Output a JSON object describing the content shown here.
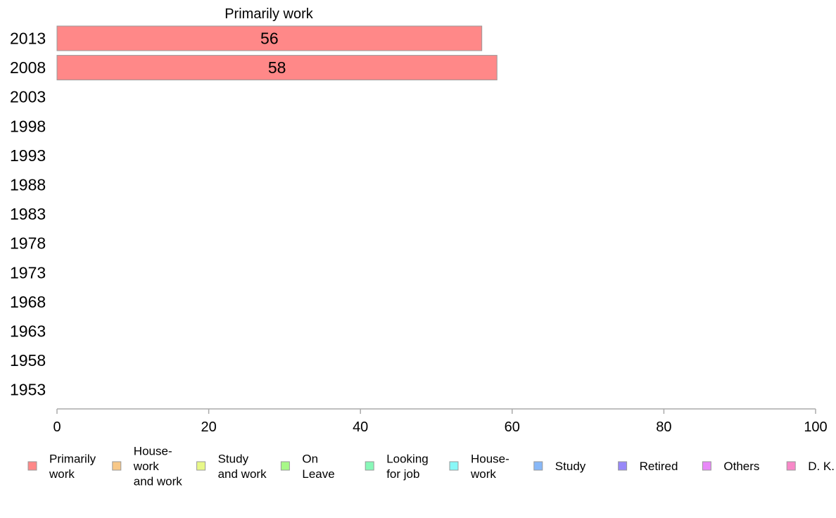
{
  "chart_data": {
    "type": "bar",
    "orientation": "horizontal",
    "title": "Primarily work",
    "categories": [
      "2013",
      "2008",
      "2003",
      "1998",
      "1993",
      "1988",
      "1983",
      "1978",
      "1973",
      "1968",
      "1963",
      "1958",
      "1953"
    ],
    "series": [
      {
        "name": "Primarily work",
        "values": [
          56,
          58,
          null,
          null,
          null,
          null,
          null,
          null,
          null,
          null,
          null,
          null,
          null
        ]
      }
    ],
    "xlim": [
      0,
      100
    ],
    "xticks": [
      "0",
      "20",
      "40",
      "60",
      "80",
      "100"
    ],
    "grid": false,
    "legend_position": "bottom",
    "legend": [
      {
        "label": [
          "Primarily",
          "work"
        ],
        "color": "#ff8888"
      },
      {
        "label": [
          "House-",
          "work",
          "and work"
        ],
        "color": "#f8c888"
      },
      {
        "label": [
          "Study",
          "and work"
        ],
        "color": "#e8f888"
      },
      {
        "label": [
          "On",
          "Leave"
        ],
        "color": "#a8f888"
      },
      {
        "label": [
          "Looking",
          "for job"
        ],
        "color": "#88f8b8"
      },
      {
        "label": [
          "House-",
          "work"
        ],
        "color": "#88f8f8"
      },
      {
        "label": [
          "Study"
        ],
        "color": "#88b8f8"
      },
      {
        "label": [
          "Retired"
        ],
        "color": "#9888f8"
      },
      {
        "label": [
          "Others"
        ],
        "color": "#e888f8"
      },
      {
        "label": [
          "D. K."
        ],
        "color": "#f888c8"
      }
    ],
    "colors": {
      "bar": "#ff8888",
      "bar_stroke": "#999999",
      "axis": "#aaaaaa"
    }
  }
}
